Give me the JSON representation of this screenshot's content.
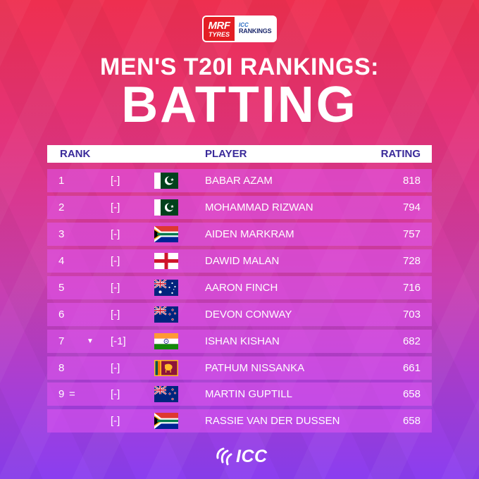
{
  "brand": {
    "sponsor_line1": "MRF",
    "sponsor_line2": "TYRES",
    "rankings_line1": "ICC",
    "rankings_line2": "RANKINGS",
    "footer": "ICC"
  },
  "title": {
    "line1": "MEN'S T20I RANKINGS:",
    "line2": "BATTING"
  },
  "table": {
    "headers": {
      "rank": "RANK",
      "player": "PLAYER",
      "rating": "RATING"
    },
    "rows": [
      {
        "rank": "1",
        "tie": "",
        "arrow": "",
        "movement": "[-]",
        "flag": "pakistan-flag",
        "player": "BABAR AZAM",
        "rating": "818"
      },
      {
        "rank": "2",
        "tie": "",
        "arrow": "",
        "movement": "[-]",
        "flag": "pakistan-flag",
        "player": "MOHAMMAD RIZWAN",
        "rating": "794"
      },
      {
        "rank": "3",
        "tie": "",
        "arrow": "",
        "movement": "[-]",
        "flag": "south-africa-flag",
        "player": "AIDEN MARKRAM",
        "rating": "757"
      },
      {
        "rank": "4",
        "tie": "",
        "arrow": "",
        "movement": "[-]",
        "flag": "england-flag",
        "player": "DAWID MALAN",
        "rating": "728"
      },
      {
        "rank": "5",
        "tie": "",
        "arrow": "",
        "movement": "[-]",
        "flag": "australia-flag",
        "player": "AARON FINCH",
        "rating": "716"
      },
      {
        "rank": "6",
        "tie": "",
        "arrow": "",
        "movement": "[-]",
        "flag": "new-zealand-flag",
        "player": "DEVON CONWAY",
        "rating": "703"
      },
      {
        "rank": "7",
        "tie": "",
        "arrow": "▼",
        "movement": "[-1]",
        "flag": "india-flag",
        "player": "ISHAN KISHAN",
        "rating": "682"
      },
      {
        "rank": "8",
        "tie": "",
        "arrow": "",
        "movement": "[-]",
        "flag": "sri-lanka-flag",
        "player": "PATHUM NISSANKA",
        "rating": "661"
      },
      {
        "rank": "9",
        "tie": "=",
        "arrow": "",
        "movement": "[-]",
        "flag": "new-zealand-flag",
        "player": "MARTIN GUPTILL",
        "rating": "658"
      },
      {
        "rank": "",
        "tie": "",
        "arrow": "",
        "movement": "[-]",
        "flag": "south-africa-flag",
        "player": "RASSIE VAN DER DUSSEN",
        "rating": "658"
      }
    ]
  },
  "colors": {
    "header_text": "#3a2a9a",
    "row_bg": "#e155f0"
  }
}
